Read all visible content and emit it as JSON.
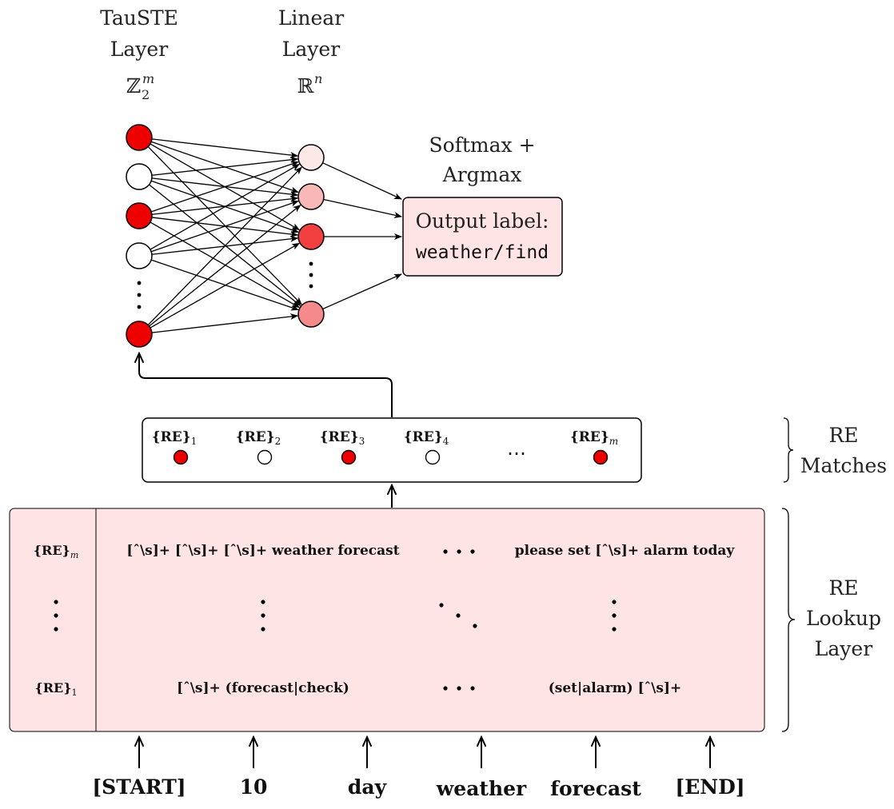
{
  "colors": {
    "active": "#ee0000",
    "inactive": "#ffffff",
    "panel_fill": "#ffe4e6",
    "box_stroke": "#000000",
    "linear": [
      "#fde8e8",
      "#f9b8b8",
      "#f24040",
      "#f58a8a"
    ]
  },
  "headers": {
    "tauste": {
      "line1": "TauSTE",
      "line2": "Layer",
      "symbol": "ℤ",
      "sub": "2",
      "sup": "m"
    },
    "linear": {
      "line1": "Linear",
      "line2": "Layer",
      "symbol": "ℝ",
      "sup": "n"
    },
    "softmax": {
      "line1": "Softmax +",
      "line2": "Argmax"
    }
  },
  "tauste_neurons": [
    {
      "active": true
    },
    {
      "active": false
    },
    {
      "active": true
    },
    {
      "active": false
    },
    {
      "active": true
    }
  ],
  "output": {
    "line1": "Output label:",
    "line2": "weather/find"
  },
  "re_matches": {
    "side_label": {
      "line1": "RE",
      "line2": "Matches"
    },
    "items": [
      {
        "base": "{RE}",
        "sub": "1",
        "active": true
      },
      {
        "base": "{RE}",
        "sub": "2",
        "active": false
      },
      {
        "base": "{RE}",
        "sub": "3",
        "active": true
      },
      {
        "base": "{RE}",
        "sub": "4",
        "active": false
      },
      {
        "base": "{RE}",
        "sub": "m",
        "active": true
      }
    ],
    "ellipsis": "⋯"
  },
  "lookup": {
    "side_label": {
      "line1": "RE",
      "line2": "Lookup",
      "line3": "Layer"
    },
    "row_top": {
      "key_base": "{RE}",
      "key_sub": "m",
      "col1": "[ˆ\\s]+ [ˆ\\s]+ [ˆ\\s]+ weather forecast",
      "col3": "please set [ˆ\\s]+ alarm today"
    },
    "row_bottom": {
      "key_base": "{RE}",
      "key_sub": "1",
      "col1": "[ˆ\\s]+ (forecast|check)",
      "col3": "(set|alarm) [ˆ\\s]+"
    }
  },
  "tokens": [
    "[START]",
    "10",
    "day",
    "weather",
    "forecast",
    "[END]"
  ]
}
